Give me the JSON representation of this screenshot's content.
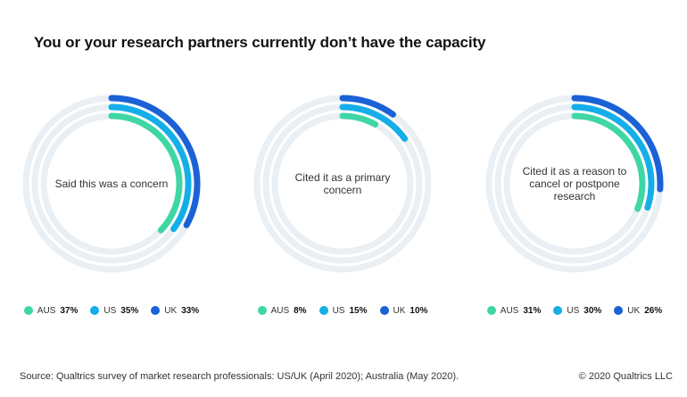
{
  "title": "You or your research partners currently don’t have the capacity",
  "colors": {
    "track": "#eaeff4",
    "AUS": "#3fd6a5",
    "US": "#14aee8",
    "UK": "#1a62d6"
  },
  "chart_data": [
    {
      "type": "radial-bar",
      "label": "Said this was a concern",
      "series": [
        {
          "name": "AUS",
          "value": 37,
          "display": "37%"
        },
        {
          "name": "US",
          "value": 35,
          "display": "35%"
        },
        {
          "name": "UK",
          "value": 33,
          "display": "33%"
        }
      ]
    },
    {
      "type": "radial-bar",
      "label": "Cited it as a primary\nconcern",
      "series": [
        {
          "name": "AUS",
          "value": 8,
          "display": "8%"
        },
        {
          "name": "US",
          "value": 15,
          "display": "15%"
        },
        {
          "name": "UK",
          "value": 10,
          "display": "10%"
        }
      ]
    },
    {
      "type": "radial-bar",
      "label": "Cited it as a  reason to\ncancel or postpone\nresearch",
      "series": [
        {
          "name": "AUS",
          "value": 31,
          "display": "31%"
        },
        {
          "name": "US",
          "value": 30,
          "display": "30%"
        },
        {
          "name": "UK",
          "value": 26,
          "display": "26%"
        }
      ]
    }
  ],
  "footer": {
    "source": "Source: Qualtrics survey of market research professionals: US/UK (April 2020); Australia (May 2020).",
    "copyright": "© 2020 Qualtrics LLC"
  }
}
